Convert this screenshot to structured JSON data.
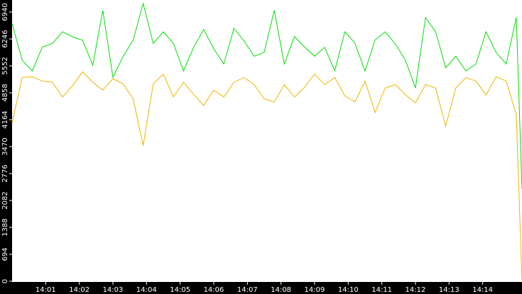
{
  "chart_data": {
    "type": "line",
    "x": [
      0,
      0.3,
      0.6,
      0.9,
      1.2,
      1.5,
      1.8,
      2.1,
      2.4,
      2.7,
      3.0,
      3.3,
      3.6,
      3.9,
      4.2,
      4.5,
      4.8,
      5.1,
      5.4,
      5.7,
      6.0,
      6.3,
      6.6,
      6.9,
      7.2,
      7.5,
      7.8,
      8.1,
      8.4,
      8.7,
      9.0,
      9.3,
      9.6,
      9.9,
      10.2,
      10.5,
      10.8,
      11.1,
      11.4,
      11.7,
      12.0,
      12.3,
      12.6,
      12.9,
      13.2,
      13.5,
      13.8,
      14.1,
      14.4,
      14.7,
      15.0,
      15.17
    ],
    "series": [
      {
        "color": "#00e000",
        "values": [
          6650,
          5700,
          5420,
          6040,
          6130,
          6430,
          6300,
          6210,
          5570,
          6980,
          5260,
          5790,
          6210,
          7160,
          6130,
          6430,
          6130,
          5420,
          6030,
          6490,
          5990,
          5600,
          6520,
          6200,
          5800,
          5900,
          6980,
          5600,
          6310,
          6040,
          5800,
          6030,
          5430,
          6430,
          6140,
          5420,
          6220,
          6430,
          6120,
          5700,
          4980,
          6800,
          6430,
          5500,
          5800,
          5420,
          5600,
          6430,
          5900,
          5600,
          6800,
          2380
        ]
      },
      {
        "color": "#f0b400",
        "values": [
          4080,
          5250,
          5270,
          5160,
          5130,
          4750,
          5040,
          5400,
          5130,
          4930,
          5220,
          5090,
          4710,
          3500,
          5090,
          5340,
          4750,
          5130,
          4820,
          4530,
          4930,
          4750,
          5130,
          5250,
          5070,
          4700,
          4620,
          5070,
          4750,
          5000,
          5340,
          5070,
          5250,
          4780,
          4620,
          5160,
          4350,
          4980,
          5070,
          4810,
          4600,
          5070,
          4980,
          4000,
          4980,
          5250,
          5160,
          4800,
          5270,
          5160,
          4300,
          0
        ]
      }
    ],
    "xlim": [
      0,
      15.17
    ],
    "xticks": [
      {
        "value": 1,
        "label": "14:01"
      },
      {
        "value": 2,
        "label": "14:02"
      },
      {
        "value": 3,
        "label": "14:03"
      },
      {
        "value": 4,
        "label": "14:04"
      },
      {
        "value": 5,
        "label": "14:05"
      },
      {
        "value": 6,
        "label": "14:06"
      },
      {
        "value": 7,
        "label": "14:07"
      },
      {
        "value": 8,
        "label": "14:08"
      },
      {
        "value": 9,
        "label": "14:09"
      },
      {
        "value": 10,
        "label": "14:10"
      },
      {
        "value": 11,
        "label": "14:11"
      },
      {
        "value": 12,
        "label": "14:12"
      },
      {
        "value": 13,
        "label": "14:13"
      },
      {
        "value": 14,
        "label": "14:14"
      }
    ],
    "ylim": [
      0,
      7250
    ],
    "yticks": [
      0,
      694,
      1388,
      2082,
      2776,
      3470,
      4164,
      4858,
      5552,
      6246,
      6940
    ]
  }
}
